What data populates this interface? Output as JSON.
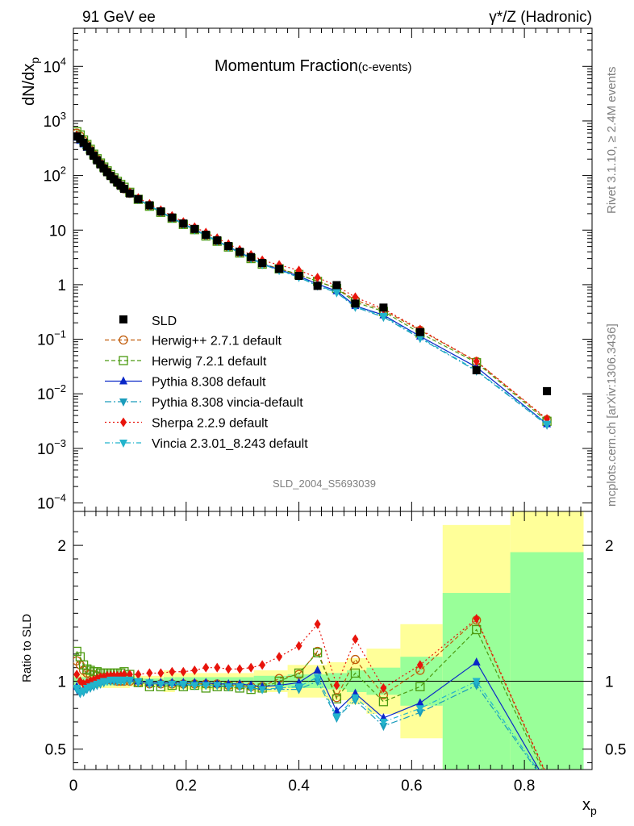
{
  "header": {
    "left": "91 GeV ee",
    "right": "γ*/Z (Hadronic)"
  },
  "side": {
    "rivet": "Rivet 3.1.10, ≥ 2.4M events",
    "mcplots": "mcplots.cern.ch [arXiv:1306.3436]"
  },
  "chart_data": {
    "type": "line",
    "title": "Momentum Fraction",
    "title_suffix": "(c-events)",
    "watermark": "SLD_2004_S5693039",
    "xlabel": "x",
    "xlabel_sub": "p",
    "ylabel_main": "dN/dx",
    "ylabel_main_sub": "p",
    "ylabel_ratio": "Ratio to SLD",
    "xlim": [
      0,
      0.92
    ],
    "ylim_main": [
      7e-05,
      50000
    ],
    "ylim_ratio": [
      0.35,
      2.25
    ],
    "log_y_main": true,
    "x_ticks": [
      0,
      0.2,
      0.4,
      0.6,
      0.8
    ],
    "x_tick_labels": [
      "0",
      "0.2",
      "0.4",
      "0.6",
      "0.8"
    ],
    "y_ticks_main": [
      {
        "v": 0.0001,
        "base": "10",
        "exp": "−4"
      },
      {
        "v": 0.001,
        "base": "10",
        "exp": "−3"
      },
      {
        "v": 0.01,
        "base": "10",
        "exp": "−2"
      },
      {
        "v": 0.1,
        "base": "10",
        "exp": "−1"
      },
      {
        "v": 1,
        "base": "1",
        "exp": ""
      },
      {
        "v": 10,
        "base": "10",
        "exp": ""
      },
      {
        "v": 100,
        "base": "10",
        "exp": "2"
      },
      {
        "v": 1000,
        "base": "10",
        "exp": "3"
      },
      {
        "v": 10000,
        "base": "10",
        "exp": "4"
      }
    ],
    "y_ticks_ratio": [
      0.5,
      1,
      2
    ],
    "y_tick_labels_ratio": [
      "0.5",
      "1",
      "2"
    ],
    "x": [
      0.006,
      0.012,
      0.018,
      0.024,
      0.03,
      0.036,
      0.042,
      0.048,
      0.054,
      0.06,
      0.066,
      0.072,
      0.078,
      0.084,
      0.09,
      0.1,
      0.115,
      0.135,
      0.155,
      0.175,
      0.195,
      0.215,
      0.235,
      0.255,
      0.275,
      0.295,
      0.315,
      0.335,
      0.365,
      0.4,
      0.433,
      0.467,
      0.5,
      0.55,
      0.615,
      0.715,
      0.84
    ],
    "data": {
      "name": "SLD",
      "values": [
        520,
        470,
        400,
        340,
        280,
        230,
        190,
        160,
        135,
        115,
        98,
        85,
        74,
        65,
        57,
        47,
        37,
        28.5,
        22,
        17,
        13.2,
        10.5,
        8.2,
        6.5,
        5.1,
        4.0,
        3.2,
        2.5,
        1.95,
        1.45,
        0.95,
        0.98,
        0.45,
        0.38,
        0.135,
        0.027,
        0.0112
      ]
    },
    "mc": [
      {
        "name": "Herwig++ 2.7.1 default",
        "color": "#c05c0a",
        "style": "dashed",
        "marker": "circle-open",
        "ratio": [
          1.15,
          1.12,
          1.08,
          1.06,
          1.05,
          1.05,
          1.04,
          1.03,
          1.02,
          1.02,
          1.01,
          1.01,
          1.0,
          1.0,
          1.0,
          1.0,
          0.99,
          0.98,
          0.98,
          0.98,
          0.98,
          0.98,
          0.98,
          0.98,
          0.97,
          0.97,
          0.96,
          0.96,
          1.02,
          1.05,
          1.22,
          0.88,
          1.16,
          0.9,
          1.08,
          1.45,
          0.3
        ]
      },
      {
        "name": "Herwig 7.2.1 default",
        "color": "#4c9a10",
        "style": "dashed",
        "marker": "square-open",
        "ratio": [
          1.22,
          1.18,
          1.12,
          1.09,
          1.08,
          1.07,
          1.07,
          1.06,
          1.06,
          1.06,
          1.06,
          1.06,
          1.06,
          1.06,
          1.07,
          1.05,
          0.99,
          0.96,
          0.96,
          0.97,
          0.96,
          0.97,
          0.95,
          0.96,
          0.96,
          0.95,
          0.94,
          0.95,
          1.0,
          1.06,
          1.21,
          0.87,
          1.06,
          0.85,
          0.96,
          1.38,
          0.28
        ]
      },
      {
        "name": "Pythia 8.308 default",
        "color": "#0a28c8",
        "style": "solid",
        "marker": "triangle-up",
        "ratio": [
          0.96,
          0.93,
          0.94,
          0.96,
          0.97,
          0.98,
          0.99,
          1.0,
          1.01,
          1.01,
          1.01,
          1.02,
          1.02,
          1.02,
          1.02,
          1.02,
          1.0,
          0.99,
          0.99,
          0.99,
          0.99,
          0.99,
          0.99,
          0.98,
          0.98,
          0.98,
          0.97,
          0.96,
          0.97,
          0.99,
          1.08,
          0.78,
          0.91,
          0.73,
          0.84,
          1.14,
          0.25
        ]
      },
      {
        "name": "Pythia 8.308 vincia-default",
        "color": "#1a9cbc",
        "style": "dashdot",
        "marker": "triangle-down",
        "ratio": [
          0.94,
          0.91,
          0.92,
          0.94,
          0.95,
          0.96,
          0.97,
          0.98,
          0.99,
          1.0,
          1.0,
          1.0,
          1.0,
          1.0,
          1.0,
          1.0,
          0.99,
          0.98,
          0.98,
          0.98,
          0.97,
          0.97,
          0.97,
          0.97,
          0.96,
          0.96,
          0.95,
          0.94,
          0.94,
          0.94,
          1.0,
          0.73,
          0.86,
          0.67,
          0.77,
          0.97,
          0.24
        ]
      },
      {
        "name": "Sherpa 2.2.9 default",
        "color": "#e8140c",
        "style": "dotted",
        "marker": "diamond",
        "ratio": [
          1.05,
          1.0,
          0.98,
          0.99,
          1.0,
          1.01,
          1.02,
          1.03,
          1.03,
          1.04,
          1.04,
          1.04,
          1.04,
          1.04,
          1.05,
          1.05,
          1.05,
          1.06,
          1.06,
          1.07,
          1.07,
          1.08,
          1.1,
          1.1,
          1.09,
          1.09,
          1.1,
          1.12,
          1.18,
          1.26,
          1.42,
          0.97,
          1.31,
          0.95,
          1.12,
          1.46,
          0.31
        ]
      },
      {
        "name": "Vincia 2.3.01_8.243 default",
        "color": "#22b4cc",
        "style": "dashdot2",
        "marker": "triangle-down",
        "ratio": [
          0.95,
          0.92,
          0.93,
          0.95,
          0.96,
          0.97,
          0.98,
          0.99,
          1.0,
          1.0,
          1.01,
          1.01,
          1.01,
          1.01,
          1.01,
          1.01,
          1.0,
          0.99,
          0.98,
          0.98,
          0.98,
          0.97,
          0.97,
          0.97,
          0.96,
          0.96,
          0.95,
          0.94,
          0.95,
          0.96,
          1.03,
          0.74,
          0.88,
          0.7,
          0.8,
          1.0,
          0.25
        ]
      }
    ],
    "uncertainty_bands": [
      {
        "x0": 0.0,
        "x1": 0.1,
        "g": [
          0.97,
          1.03
        ],
        "y": [
          0.95,
          1.05
        ]
      },
      {
        "x0": 0.1,
        "x1": 0.16,
        "g": [
          0.98,
          1.02
        ],
        "y": [
          0.96,
          1.04
        ]
      },
      {
        "x0": 0.16,
        "x1": 0.18,
        "g": [
          0.97,
          1.03
        ],
        "y": [
          0.92,
          1.08
        ]
      },
      {
        "x0": 0.18,
        "x1": 0.32,
        "g": [
          0.97,
          1.03
        ],
        "y": [
          0.94,
          1.06
        ]
      },
      {
        "x0": 0.32,
        "x1": 0.38,
        "g": [
          0.96,
          1.04
        ],
        "y": [
          0.92,
          1.08
        ]
      },
      {
        "x0": 0.38,
        "x1": 0.45,
        "g": [
          0.95,
          1.05
        ],
        "y": [
          0.88,
          1.12
        ]
      },
      {
        "x0": 0.45,
        "x1": 0.485,
        "g": [
          0.94,
          1.06
        ],
        "y": [
          0.86,
          1.14
        ]
      },
      {
        "x0": 0.485,
        "x1": 0.52,
        "g": [
          0.92,
          1.08
        ],
        "y": [
          0.83,
          1.17
        ]
      },
      {
        "x0": 0.52,
        "x1": 0.58,
        "g": [
          0.9,
          1.1
        ],
        "y": [
          0.76,
          1.24
        ]
      },
      {
        "x0": 0.58,
        "x1": 0.655,
        "g": [
          0.82,
          1.18
        ],
        "y": [
          0.58,
          1.42
        ]
      },
      {
        "x0": 0.655,
        "x1": 0.775,
        "g": [
          0.35,
          1.65
        ],
        "y": [
          0.35,
          2.15
        ]
      },
      {
        "x0": 0.775,
        "x1": 0.905,
        "g": [
          0.35,
          1.95
        ],
        "y": [
          0.35,
          2.25
        ]
      }
    ],
    "legend_position": "middle-left"
  }
}
